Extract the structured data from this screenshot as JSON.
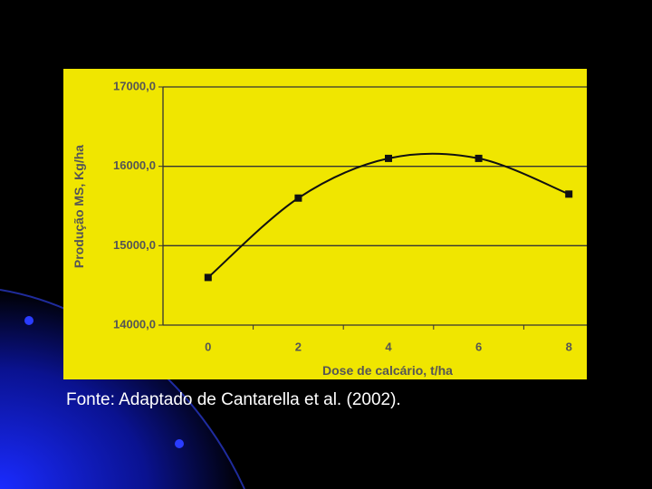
{
  "chart_data": {
    "type": "line",
    "categories": [
      "0",
      "2",
      "4",
      "6",
      "8"
    ],
    "series": [
      {
        "name": "Produção MS",
        "color": "#111111",
        "values": [
          14600,
          15600,
          16100,
          16100,
          15650
        ]
      }
    ],
    "ylim": [
      14000,
      17000
    ],
    "yticks": [
      {
        "value": 14000,
        "label": "14000,0"
      },
      {
        "value": 15000,
        "label": "15000,0"
      },
      {
        "value": 16000,
        "label": "16000,0"
      },
      {
        "value": 17000,
        "label": "17000,0"
      }
    ],
    "grid": true,
    "ylabel": "Produção MS, Kg/ha",
    "xlabel": "Dose de calcário, t/ha",
    "source": "Fonte: Adaptado de Cantarella et al. (2002)."
  }
}
